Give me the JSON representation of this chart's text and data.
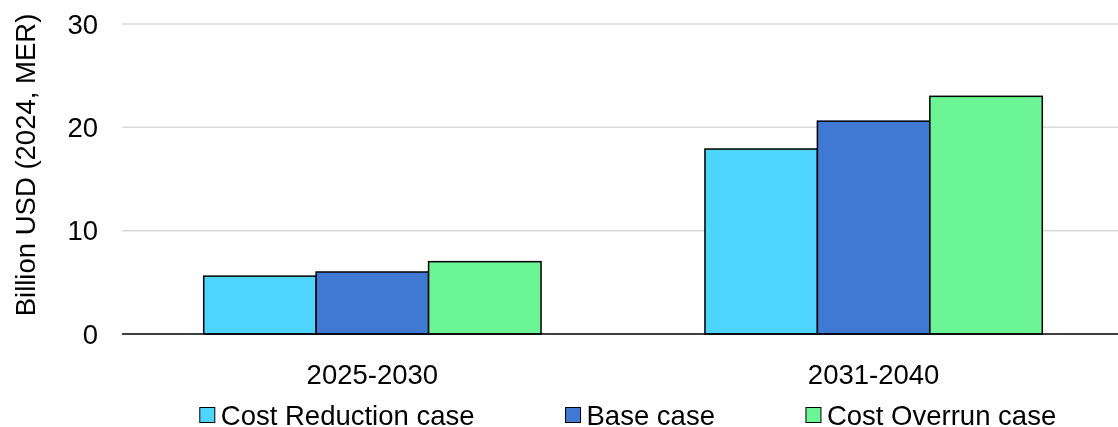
{
  "chart_data": {
    "type": "bar",
    "ylabel": "Billion USD (2024, MER)",
    "categories": [
      "2025-2030",
      "2031-2040"
    ],
    "series": [
      {
        "name": "Cost Reduction case",
        "color": "#4dd5ff",
        "values": [
          5.6,
          17.9
        ]
      },
      {
        "name": "Base case",
        "color": "#3f79d3",
        "values": [
          6.0,
          20.6
        ]
      },
      {
        "name": "Cost Overrun case",
        "color": "#6bf595",
        "values": [
          7.0,
          23.0
        ]
      }
    ],
    "ylim": [
      0,
      30
    ],
    "yticks": [
      0,
      10,
      20,
      30
    ],
    "grid": "y",
    "legend": "bottom"
  }
}
